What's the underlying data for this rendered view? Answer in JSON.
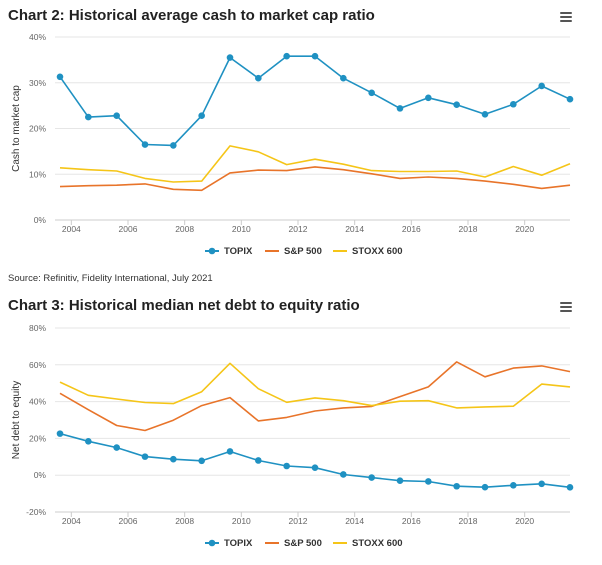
{
  "source": "Source: Refinitiv, Fidelity International, July 2021",
  "menu_icon": "hamburger-menu-icon",
  "colors": {
    "TOPIX": "#1f91c2",
    "S&P 500": "#e8742a",
    "STOXX 600": "#f5c518",
    "grid": "#e6e6e6",
    "axis_text": "#666666"
  },
  "chart_data": [
    {
      "type": "line",
      "title": "Chart 2: Historical average cash to market cap ratio",
      "ylabel": "Cash to market cap",
      "xlabel": "",
      "ylim": [
        0,
        40
      ],
      "yticks": [
        0,
        10,
        20,
        30,
        40
      ],
      "ytick_labels": [
        "0%",
        "10%",
        "20%",
        "30%",
        "40%"
      ],
      "xlim": [
        2003.6,
        2021.6
      ],
      "xticks": [
        2004,
        2006,
        2008,
        2010,
        2012,
        2014,
        2016,
        2018,
        2020
      ],
      "x": [
        2003.6,
        2004.6,
        2005.6,
        2006.6,
        2007.6,
        2008.6,
        2009.6,
        2010.6,
        2011.6,
        2012.6,
        2013.6,
        2014.6,
        2015.6,
        2016.6,
        2017.6,
        2018.6,
        2019.6,
        2020.6,
        2021.6
      ],
      "legend": "bottom-center",
      "grid": true,
      "series": [
        {
          "name": "TOPIX",
          "markers": true,
          "values": [
            31.3,
            22.5,
            22.8,
            16.5,
            16.3,
            22.8,
            35.5,
            31.0,
            35.8,
            35.8,
            31.0,
            27.8,
            24.4,
            26.7,
            25.2,
            23.1,
            25.3,
            29.3,
            26.4
          ]
        },
        {
          "name": "S&P 500",
          "markers": false,
          "values": [
            7.3,
            7.5,
            7.6,
            7.9,
            6.7,
            6.5,
            10.3,
            10.9,
            10.8,
            11.6,
            11.0,
            10.1,
            9.1,
            9.4,
            9.1,
            8.5,
            7.8,
            6.9,
            7.6
          ]
        },
        {
          "name": "STOXX 600",
          "markers": false,
          "values": [
            11.4,
            11.0,
            10.7,
            9.1,
            8.3,
            8.5,
            16.2,
            14.9,
            12.1,
            13.3,
            12.2,
            10.8,
            10.6,
            10.6,
            10.7,
            9.4,
            11.7,
            9.8,
            12.3
          ]
        }
      ]
    },
    {
      "type": "line",
      "title": "Chart 3: Historical median net debt to equity ratio",
      "ylabel": "Net debt to equity",
      "xlabel": "",
      "ylim": [
        -20,
        80
      ],
      "yticks": [
        -20,
        0,
        20,
        40,
        60,
        80
      ],
      "ytick_labels": [
        "-20%",
        "0%",
        "20%",
        "40%",
        "60%",
        "80%"
      ],
      "xlim": [
        2003.6,
        2021.6
      ],
      "xticks": [
        2004,
        2006,
        2008,
        2010,
        2012,
        2014,
        2016,
        2018,
        2020
      ],
      "x": [
        2003.6,
        2004.6,
        2005.6,
        2006.6,
        2007.6,
        2008.6,
        2009.6,
        2010.6,
        2011.6,
        2012.6,
        2013.6,
        2014.6,
        2015.6,
        2016.6,
        2017.6,
        2018.6,
        2019.6,
        2020.6,
        2021.6
      ],
      "legend": "bottom-center",
      "grid": true,
      "series": [
        {
          "name": "TOPIX",
          "markers": true,
          "values": [
            22.6,
            18.4,
            15.0,
            10.1,
            8.7,
            7.8,
            12.9,
            8.0,
            5.0,
            4.1,
            0.4,
            -1.3,
            -3.0,
            -3.4,
            -6.0,
            -6.5,
            -5.5,
            -4.7,
            -6.6
          ]
        },
        {
          "name": "S&P 500",
          "markers": false,
          "values": [
            44.5,
            35.6,
            27.0,
            24.3,
            29.9,
            37.8,
            42.2,
            29.5,
            31.4,
            34.9,
            36.6,
            37.4,
            42.7,
            48.0,
            61.6,
            53.5,
            58.2,
            59.4,
            56.3
          ]
        },
        {
          "name": "STOXX 600",
          "markers": false,
          "values": [
            50.6,
            43.4,
            41.4,
            39.5,
            38.9,
            45.4,
            60.8,
            47.0,
            39.6,
            42.0,
            40.5,
            37.8,
            40.2,
            40.5,
            36.6,
            37.1,
            37.5,
            49.5,
            48.0
          ]
        }
      ]
    }
  ]
}
